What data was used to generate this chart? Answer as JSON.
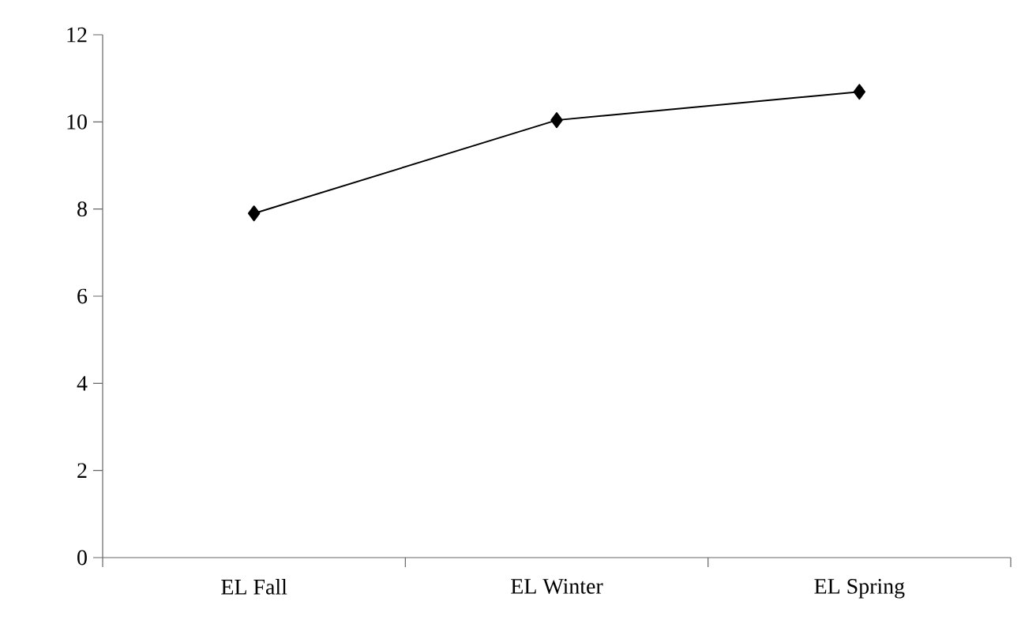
{
  "chart_data": {
    "type": "line",
    "categories": [
      "EL Fall",
      "EL Winter",
      "EL Spring"
    ],
    "series": [
      {
        "color": "#000000",
        "values": [
          7.9,
          10.04,
          10.69
        ]
      }
    ],
    "ylim": [
      0,
      12
    ],
    "yticks": [
      0,
      2,
      4,
      6,
      8,
      10,
      12
    ],
    "grid": false,
    "legend": false,
    "marker": "diamond",
    "line_style": "solid"
  }
}
